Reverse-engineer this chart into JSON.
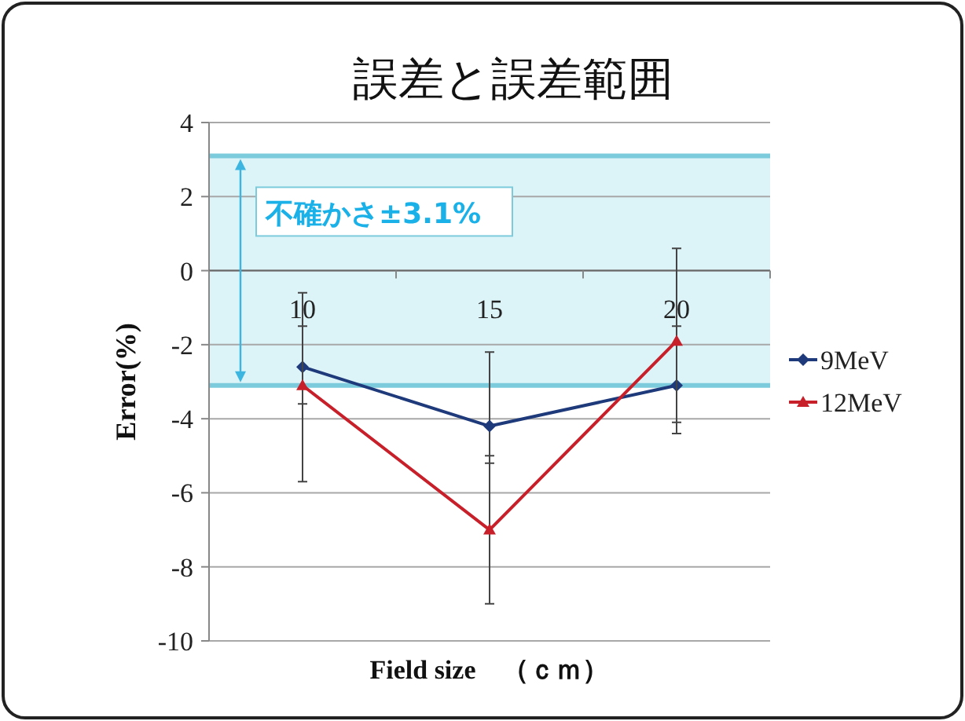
{
  "chart_data": {
    "type": "line",
    "title": "誤差と誤差範囲",
    "xlabel": "Field size　（ｃｍ）",
    "ylabel": "Error(%)",
    "categories": [
      "10",
      "15",
      "20"
    ],
    "series": [
      {
        "name": "9MeV",
        "color": "#1f3a7a",
        "marker": "diamond",
        "values": [
          -2.6,
          -4.2,
          -3.1
        ],
        "errors": [
          [
            -3.6,
            -1.5
          ],
          [
            -5.2,
            -2.2
          ],
          [
            -4.1,
            -1.5
          ]
        ]
      },
      {
        "name": "12MeV",
        "color": "#c8202a",
        "marker": "triangle",
        "values": [
          -3.1,
          -7.0,
          -1.9
        ],
        "errors": [
          [
            -5.7,
            -0.6
          ],
          [
            -9.0,
            -5.0
          ],
          [
            -4.4,
            0.6
          ]
        ]
      }
    ],
    "ylim": [
      -10,
      4
    ],
    "yticks": [
      -10,
      -8,
      -6,
      -4,
      -2,
      0,
      2,
      4
    ],
    "grid": "y",
    "legend": "right",
    "ref_lines": [
      {
        "axis": "y",
        "value": 3.1,
        "color": "#7ccbdc"
      },
      {
        "axis": "y",
        "value": -3.1,
        "color": "#7ccbdc"
      }
    ],
    "bands": [
      {
        "axis": "y",
        "from": -3.1,
        "to": 3.1,
        "label": "不確かさ±3.1%",
        "color": "#dcf3f8"
      }
    ]
  }
}
